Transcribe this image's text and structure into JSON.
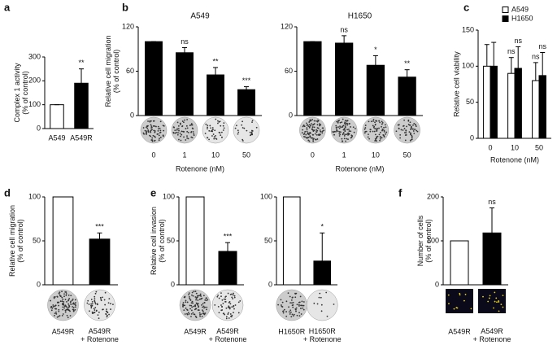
{
  "chart_data": [
    {
      "type": "bar",
      "panel": "a",
      "blot_labels": [
        "A549",
        "A549R"
      ],
      "ylabel": "Complex 1 activity\n(% of control)",
      "categories": [
        "A549",
        "A549R"
      ],
      "values": [
        100,
        190
      ],
      "errors": [
        0,
        60
      ],
      "annotations": [
        null,
        "**"
      ],
      "colors": [
        "#ffffff",
        "#000000"
      ],
      "ylim": [
        0,
        300
      ],
      "yticks": [
        0,
        100,
        200,
        300
      ]
    },
    {
      "type": "bar",
      "panel": "b",
      "title": "A549",
      "ylabel": "Relative cell migration\n(% of control)",
      "xlabel": "Rotenone (nM)",
      "categories": [
        "0",
        "1",
        "10",
        "50"
      ],
      "values": [
        100,
        85,
        55,
        35
      ],
      "errors": [
        0,
        7,
        10,
        4
      ],
      "annotations": [
        null,
        "ns",
        "**",
        "***"
      ],
      "colors": [
        "#000000",
        "#000000",
        "#000000",
        "#000000"
      ],
      "ylim": [
        0,
        120
      ],
      "yticks": [
        0,
        60,
        120
      ]
    },
    {
      "type": "bar",
      "title": "H1650",
      "xlabel": "Rotenone (nM)",
      "categories": [
        "0",
        "1",
        "10",
        "50"
      ],
      "values": [
        100,
        98,
        68,
        52
      ],
      "errors": [
        0,
        10,
        13,
        10
      ],
      "annotations": [
        null,
        "ns",
        "*",
        "**"
      ],
      "colors": [
        "#000000",
        "#000000",
        "#000000",
        "#000000"
      ],
      "ylim": [
        0,
        120
      ],
      "yticks": [
        0,
        60,
        120
      ]
    },
    {
      "type": "bar",
      "panel": "c",
      "ylabel": "Relative cell viability",
      "xlabel": "Rotenone (nM)",
      "categories": [
        "0",
        "10",
        "50"
      ],
      "ylim": [
        0,
        150
      ],
      "yticks": [
        0,
        50,
        100,
        150
      ],
      "legend": "top-right",
      "series": [
        {
          "name": "A549",
          "color": "#ffffff",
          "values": [
            100,
            90,
            80
          ],
          "errors": [
            30,
            22,
            25
          ],
          "annotations": [
            null,
            "ns",
            "ns"
          ]
        },
        {
          "name": "H1650",
          "color": "#000000",
          "values": [
            100,
            97,
            87
          ],
          "errors": [
            33,
            30,
            32
          ],
          "annotations": [
            null,
            "ns",
            "ns"
          ]
        }
      ]
    },
    {
      "type": "bar",
      "panel": "d",
      "ylabel": "Relative cell migration\n(% of control)",
      "categories": [
        "A549R",
        "A549R\n+ Rotenone"
      ],
      "values": [
        100,
        52
      ],
      "errors": [
        0,
        7
      ],
      "annotations": [
        null,
        "***"
      ],
      "colors": [
        "#ffffff",
        "#000000"
      ],
      "ylim": [
        0,
        100
      ],
      "yticks": [
        0,
        50,
        100
      ]
    },
    {
      "type": "bar",
      "panel": "e",
      "ylabel": "Relative cell invasion\n(% of control)",
      "categories": [
        "A549R",
        "A549R\n+ Rotenone"
      ],
      "values": [
        100,
        38
      ],
      "errors": [
        0,
        10
      ],
      "annotations": [
        null,
        "***"
      ],
      "colors": [
        "#ffffff",
        "#000000"
      ],
      "ylim": [
        0,
        100
      ],
      "yticks": [
        0,
        50,
        100
      ]
    },
    {
      "type": "bar",
      "categories": [
        "H1650R",
        "H1650R\n+ Rotenone"
      ],
      "values": [
        100,
        27
      ],
      "errors": [
        0,
        32
      ],
      "annotations": [
        null,
        "*"
      ],
      "colors": [
        "#ffffff",
        "#000000"
      ],
      "ylim": [
        0,
        100
      ],
      "yticks": [
        0,
        50,
        100
      ]
    },
    {
      "type": "bar",
      "panel": "f",
      "ylabel": "Number of cells\n(% of control)",
      "categories": [
        "A549R",
        "A549R\n+ Rotenone"
      ],
      "values": [
        100,
        118
      ],
      "errors": [
        0,
        57
      ],
      "annotations": [
        null,
        "ns"
      ],
      "colors": [
        "#ffffff",
        "#000000"
      ],
      "ylim": [
        0,
        200
      ],
      "yticks": [
        0,
        100,
        200
      ]
    }
  ]
}
